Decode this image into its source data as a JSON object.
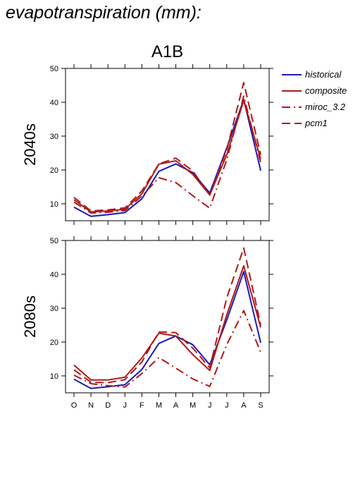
{
  "page": {
    "title": "evapotranspiration (mm):"
  },
  "chart_data": {
    "type": "line",
    "scenario": "A1B",
    "categories": [
      "O",
      "N",
      "D",
      "J",
      "F",
      "M",
      "A",
      "M",
      "J",
      "J",
      "A",
      "S"
    ],
    "ylim": [
      5,
      50
    ],
    "yticks": [
      10,
      20,
      30,
      40,
      50
    ],
    "grid": false,
    "legend_placement": "top-right",
    "legend": [
      "historical",
      "composite",
      "miroc_3.2",
      "pcm1"
    ],
    "styles": {
      "historical": {
        "color": "#1a1ab8",
        "dash": "solid"
      },
      "composite": {
        "color": "#b01818",
        "dash": "solid"
      },
      "miroc_3.2": {
        "color": "#b01818",
        "dash": "dashdot"
      },
      "pcm1": {
        "color": "#b01818",
        "dash": "dashed"
      }
    },
    "panels": [
      {
        "label": "2040s",
        "series": [
          {
            "name": "historical",
            "values": [
              9.0,
              6.3,
              6.8,
              7.4,
              11.5,
              19.6,
              21.8,
              19.2,
              13.2,
              26.5,
              40.8,
              19.8
            ]
          },
          {
            "name": "composite",
            "values": [
              11.2,
              7.6,
              7.9,
              8.4,
              13.0,
              21.7,
              22.7,
              18.7,
              12.6,
              24.5,
              40.5,
              23.2
            ]
          },
          {
            "name": "miroc_3.2",
            "values": [
              10.5,
              7.3,
              7.5,
              8.0,
              12.3,
              17.7,
              16.3,
              12.4,
              8.7,
              23.0,
              41.8,
              22.2
            ]
          },
          {
            "name": "pcm1",
            "values": [
              11.9,
              7.9,
              8.2,
              8.8,
              13.8,
              21.8,
              23.5,
              19.7,
              12.6,
              26.0,
              45.8,
              24.5
            ]
          }
        ]
      },
      {
        "label": "2080s",
        "series": [
          {
            "name": "historical",
            "values": [
              9.0,
              6.3,
              6.8,
              7.4,
              11.9,
              19.6,
              21.8,
              19.2,
              13.3,
              26.5,
              40.8,
              19.8
            ]
          },
          {
            "name": "composite",
            "values": [
              13.2,
              8.8,
              8.8,
              9.6,
              15.3,
              22.6,
              21.8,
              16.3,
              11.6,
              28.0,
              42.5,
              24.3
            ]
          },
          {
            "name": "miroc_3.2",
            "values": [
              10.2,
              7.7,
              7.1,
              6.7,
              10.7,
              15.4,
              12.3,
              9.1,
              6.9,
              19.2,
              29.3,
              17.0
            ]
          },
          {
            "name": "pcm1",
            "values": [
              11.8,
              8.1,
              8.0,
              8.9,
              14.1,
              23.0,
              22.8,
              18.2,
              12.4,
              33.0,
              47.8,
              25.0
            ]
          }
        ]
      }
    ]
  }
}
